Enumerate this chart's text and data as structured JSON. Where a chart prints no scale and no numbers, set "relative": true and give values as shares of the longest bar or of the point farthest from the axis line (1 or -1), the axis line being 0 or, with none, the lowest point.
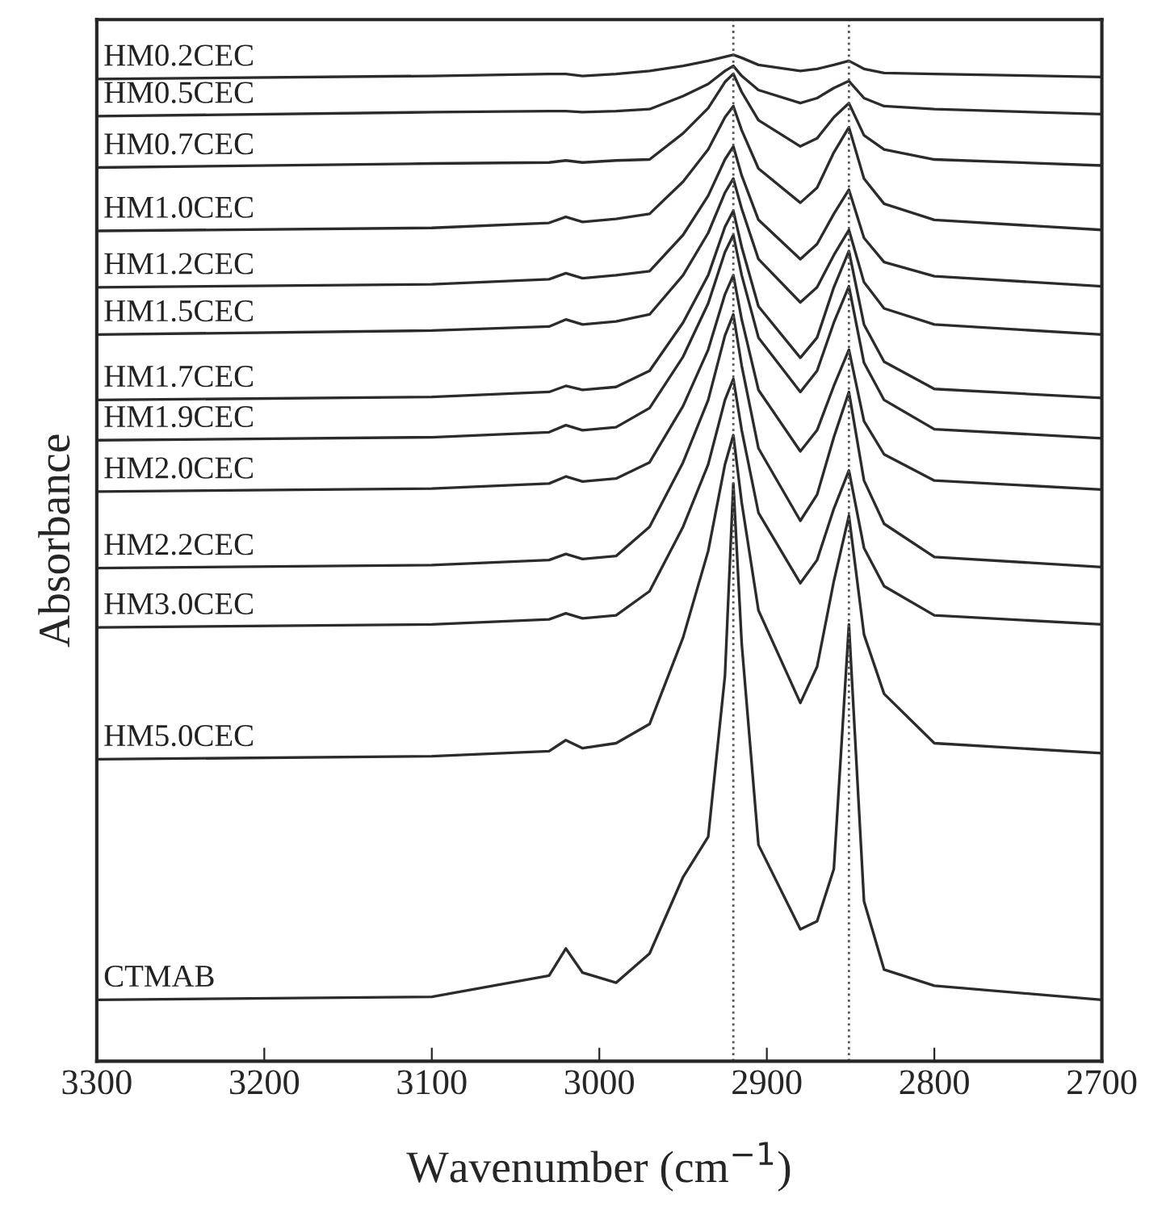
{
  "chart_data": {
    "type": "line",
    "relative": true,
    "xlabel": "Wavenumber (cm$^{−1}$)",
    "ylabel": "Absorbance",
    "xlim": [
      3300,
      2700
    ],
    "xticks": [
      3300,
      3200,
      3100,
      3000,
      2900,
      2800,
      2700
    ],
    "grid": false,
    "legend": false,
    "marker": "none",
    "line_style": "solid",
    "tick_labels": "x",
    "x": [
      3300,
      3100,
      3030,
      3020,
      3010,
      2990,
      2970,
      2950,
      2935,
      2925,
      2920,
      2915,
      2905,
      2880,
      2870,
      2860,
      2851,
      2842,
      2830,
      2800,
      2700
    ],
    "ref_lines": [
      {
        "axis": "x",
        "value": 2920,
        "label": null,
        "color": "#555555",
        "line_style": "dotted"
      },
      {
        "axis": "x",
        "value": 2851,
        "label": null,
        "color": "#555555",
        "line_style": "dotted"
      }
    ],
    "series": [
      {
        "name": "HM0.2CEC",
        "color": "#2b2b2b",
        "values": [
          0.976,
          0.979,
          0.981,
          0.981,
          0.979,
          0.981,
          0.984,
          0.989,
          0.994,
          0.998,
          1,
          0.997,
          0.99,
          0.984,
          0.986,
          0.99,
          0.994,
          0.986,
          0.982,
          0.981,
          0.978
        ]
      },
      {
        "name": "HM0.5CEC",
        "color": "#2b2b2b",
        "values": [
          0.939,
          0.943,
          0.944,
          0.944,
          0.943,
          0.944,
          0.946,
          0.959,
          0.971,
          0.984,
          0.989,
          0.979,
          0.965,
          0.952,
          0.957,
          0.967,
          0.974,
          0.957,
          0.949,
          0.946,
          0.941
        ]
      },
      {
        "name": "HM0.7CEC",
        "color": "#2b2b2b",
        "values": [
          0.888,
          0.892,
          0.893,
          0.895,
          0.893,
          0.895,
          0.896,
          0.922,
          0.947,
          0.973,
          0.981,
          0.963,
          0.935,
          0.909,
          0.917,
          0.938,
          0.952,
          0.92,
          0.906,
          0.896,
          0.89
        ]
      },
      {
        "name": "HM1.0CEC",
        "color": "#2b2b2b",
        "values": [
          0.825,
          0.828,
          0.833,
          0.839,
          0.834,
          0.837,
          0.842,
          0.874,
          0.906,
          0.938,
          0.949,
          0.925,
          0.887,
          0.853,
          0.868,
          0.903,
          0.928,
          0.877,
          0.852,
          0.836,
          0.826
        ]
      },
      {
        "name": "HM1.2CEC",
        "color": "#2b2b2b",
        "values": [
          0.769,
          0.772,
          0.777,
          0.783,
          0.778,
          0.781,
          0.785,
          0.821,
          0.86,
          0.896,
          0.909,
          0.88,
          0.836,
          0.797,
          0.812,
          0.842,
          0.866,
          0.818,
          0.794,
          0.78,
          0.77
        ]
      },
      {
        "name": "HM1.5CEC",
        "color": "#2b2b2b",
        "values": [
          0.722,
          0.726,
          0.73,
          0.737,
          0.732,
          0.735,
          0.742,
          0.781,
          0.823,
          0.863,
          0.877,
          0.847,
          0.797,
          0.754,
          0.769,
          0.801,
          0.826,
          0.774,
          0.748,
          0.732,
          0.722
        ]
      },
      {
        "name": "HM1.7CEC",
        "color": "#2b2b2b",
        "values": [
          0.657,
          0.66,
          0.665,
          0.671,
          0.667,
          0.67,
          0.686,
          0.734,
          0.781,
          0.829,
          0.845,
          0.809,
          0.75,
          0.699,
          0.719,
          0.769,
          0.805,
          0.732,
          0.695,
          0.668,
          0.659
        ]
      },
      {
        "name": "HM1.9CEC",
        "color": "#2b2b2b",
        "values": [
          0.617,
          0.62,
          0.625,
          0.632,
          0.627,
          0.63,
          0.649,
          0.7,
          0.753,
          0.804,
          0.821,
          0.781,
          0.719,
          0.665,
          0.686,
          0.734,
          0.77,
          0.694,
          0.657,
          0.628,
          0.619
        ]
      },
      {
        "name": "HM2.0CEC",
        "color": "#2b2b2b",
        "values": [
          0.566,
          0.569,
          0.574,
          0.581,
          0.576,
          0.579,
          0.595,
          0.651,
          0.707,
          0.762,
          0.781,
          0.737,
          0.667,
          0.606,
          0.627,
          0.671,
          0.707,
          0.636,
          0.603,
          0.577,
          0.568
        ]
      },
      {
        "name": "HM2.2CEC",
        "color": "#2b2b2b",
        "values": [
          0.49,
          0.493,
          0.498,
          0.504,
          0.499,
          0.502,
          0.531,
          0.595,
          0.657,
          0.721,
          0.742,
          0.691,
          0.609,
          0.537,
          0.563,
          0.62,
          0.665,
          0.577,
          0.534,
          0.501,
          0.491
        ]
      },
      {
        "name": "HM3.0CEC",
        "color": "#2b2b2b",
        "values": [
          0.431,
          0.434,
          0.439,
          0.445,
          0.44,
          0.443,
          0.467,
          0.531,
          0.593,
          0.657,
          0.678,
          0.627,
          0.545,
          0.475,
          0.498,
          0.549,
          0.587,
          0.51,
          0.472,
          0.443,
          0.434
        ]
      },
      {
        "name": "HM5.0CEC",
        "color": "#2b2b2b",
        "values": [
          0.3,
          0.303,
          0.308,
          0.319,
          0.311,
          0.316,
          0.335,
          0.421,
          0.507,
          0.593,
          0.622,
          0.555,
          0.448,
          0.356,
          0.392,
          0.477,
          0.542,
          0.424,
          0.365,
          0.316,
          0.306
        ]
      },
      {
        "name": "CTMAB",
        "color": "#2b2b2b",
        "values": [
          0.061,
          0.064,
          0.085,
          0.112,
          0.088,
          0.078,
          0.107,
          0.183,
          0.223,
          0.383,
          0.574,
          0.415,
          0.215,
          0.131,
          0.139,
          0.191,
          0.434,
          0.159,
          0.091,
          0.075,
          0.061
        ]
      }
    ]
  }
}
